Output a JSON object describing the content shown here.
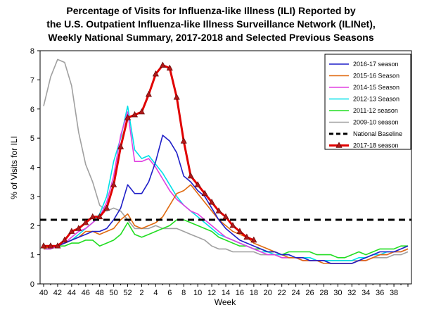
{
  "chart_data": {
    "type": "line",
    "title_lines": [
      "Percentage of Visits for Influenza-like Illness (ILI) Reported by",
      "the U.S. Outpatient Influenza-like Illness Surveillance Network (ILINet),",
      "Weekly National Summary, 2017-2018 and Selected Previous Seasons"
    ],
    "xlabel": "Week",
    "ylabel": "% of Visits for ILI",
    "ylim": [
      0,
      8
    ],
    "yticks": [
      0,
      1,
      2,
      3,
      4,
      5,
      6,
      7,
      8
    ],
    "xtick_labels": [
      "40",
      "42",
      "44",
      "46",
      "48",
      "50",
      "52",
      "2",
      "4",
      "6",
      "8",
      "10",
      "12",
      "14",
      "16",
      "18",
      "20",
      "22",
      "24",
      "26",
      "28",
      "30",
      "32",
      "34",
      "36",
      "38"
    ],
    "x_index_range": [
      0,
      52
    ],
    "grid": false,
    "legend_position": "top-right",
    "series": [
      {
        "name": "2016-17 season",
        "color": "#1f1fc8",
        "style": "solid",
        "values": [
          1.3,
          1.3,
          1.3,
          1.4,
          1.5,
          1.6,
          1.7,
          1.8,
          1.8,
          1.9,
          2.2,
          2.6,
          3.4,
          3.1,
          3.1,
          3.5,
          4.2,
          5.1,
          4.9,
          4.5,
          3.7,
          3.5,
          3.2,
          3.0,
          2.6,
          2.2,
          1.9,
          1.7,
          1.5,
          1.4,
          1.3,
          1.2,
          1.1,
          1.1,
          1.0,
          1.0,
          0.9,
          0.9,
          0.8,
          0.8,
          0.8,
          0.7,
          0.7,
          0.7,
          0.7,
          0.8,
          0.9,
          1.0,
          1.1,
          1.1,
          1.1,
          1.2,
          1.3
        ]
      },
      {
        "name": "2015-16 Season",
        "color": "#e06a10",
        "style": "solid",
        "values": [
          1.2,
          1.3,
          1.3,
          1.4,
          1.5,
          1.6,
          1.8,
          1.8,
          1.7,
          1.8,
          1.9,
          2.2,
          2.4,
          2.0,
          1.9,
          2.0,
          2.1,
          2.3,
          2.7,
          3.1,
          3.2,
          3.4,
          3.1,
          2.8,
          2.5,
          2.2,
          2.0,
          1.8,
          1.7,
          1.6,
          1.4,
          1.3,
          1.2,
          1.1,
          1.0,
          0.9,
          0.9,
          0.8,
          0.8,
          0.8,
          0.7,
          0.7,
          0.7,
          0.7,
          0.7,
          0.8,
          0.8,
          0.9,
          1.0,
          1.0,
          1.1,
          1.1,
          1.2
        ]
      },
      {
        "name": "2014-15 Season",
        "color": "#e040e0",
        "style": "solid",
        "values": [
          1.2,
          1.2,
          1.3,
          1.4,
          1.6,
          1.8,
          1.9,
          2.1,
          2.3,
          2.8,
          3.7,
          5.1,
          5.9,
          4.2,
          4.2,
          4.3,
          4.0,
          3.6,
          3.2,
          2.9,
          2.7,
          2.5,
          2.4,
          2.2,
          2.0,
          1.8,
          1.6,
          1.5,
          1.4,
          1.3,
          1.2,
          1.1,
          1.0,
          1.0,
          0.9,
          0.9,
          0.9,
          0.8,
          0.8,
          0.8,
          0.8,
          0.7,
          0.7,
          0.7,
          0.7,
          0.8,
          0.8,
          0.9,
          1.0,
          1.0,
          1.1,
          1.1,
          1.2
        ]
      },
      {
        "name": "2012-13 Season",
        "color": "#00e0e8",
        "style": "solid",
        "values": [
          1.2,
          1.3,
          1.3,
          1.4,
          1.5,
          1.7,
          1.9,
          2.1,
          2.4,
          3.0,
          4.2,
          5.0,
          6.1,
          4.6,
          4.3,
          4.4,
          4.1,
          3.8,
          3.4,
          3.0,
          2.7,
          2.5,
          2.3,
          2.1,
          1.9,
          1.7,
          1.6,
          1.5,
          1.4,
          1.3,
          1.2,
          1.1,
          1.1,
          1.0,
          1.0,
          1.0,
          0.9,
          0.9,
          0.9,
          0.8,
          0.8,
          0.8,
          0.8,
          0.8,
          0.8,
          0.9,
          0.9,
          1.0,
          1.0,
          1.1,
          1.1,
          1.1,
          1.2
        ]
      },
      {
        "name": "2011-12 season",
        "color": "#22dd22",
        "style": "solid",
        "values": [
          1.2,
          1.2,
          1.3,
          1.3,
          1.4,
          1.4,
          1.5,
          1.5,
          1.3,
          1.4,
          1.5,
          1.7,
          2.1,
          1.7,
          1.6,
          1.7,
          1.8,
          1.9,
          2.0,
          2.2,
          2.2,
          2.1,
          2.0,
          1.9,
          1.8,
          1.6,
          1.5,
          1.4,
          1.3,
          1.3,
          1.2,
          1.2,
          1.1,
          1.1,
          1.0,
          1.1,
          1.1,
          1.1,
          1.1,
          1.0,
          1.0,
          1.0,
          0.9,
          0.9,
          1.0,
          1.1,
          1.0,
          1.1,
          1.2,
          1.2,
          1.2,
          1.3,
          1.3
        ]
      },
      {
        "name": "2009-10 season",
        "color": "#a0a0a0",
        "style": "solid",
        "values": [
          6.1,
          7.1,
          7.7,
          7.6,
          6.8,
          5.2,
          4.1,
          3.5,
          2.7,
          2.5,
          2.6,
          2.5,
          2.2,
          1.9,
          1.9,
          1.9,
          2.0,
          1.9,
          1.9,
          1.9,
          1.8,
          1.7,
          1.6,
          1.5,
          1.3,
          1.2,
          1.2,
          1.1,
          1.1,
          1.1,
          1.1,
          1.0,
          1.0,
          1.0,
          0.9,
          0.9,
          0.9,
          0.9,
          0.9,
          0.8,
          0.8,
          0.8,
          0.8,
          0.8,
          0.8,
          0.8,
          0.8,
          0.9,
          0.9,
          0.9,
          1.0,
          1.0,
          1.1
        ]
      },
      {
        "name": "National Baseline",
        "color": "#000000",
        "style": "dashed",
        "values": [
          2.2
        ]
      },
      {
        "name": "2017-18 season",
        "color": "#e00000",
        "style": "marker-triangle",
        "values": [
          1.3,
          1.3,
          1.3,
          1.5,
          1.8,
          1.9,
          2.1,
          2.3,
          2.3,
          2.6,
          3.4,
          4.7,
          5.7,
          5.8,
          5.9,
          6.5,
          7.2,
          7.5,
          7.4,
          6.4,
          4.9,
          3.7,
          3.4,
          3.1,
          2.8,
          2.5,
          2.3,
          2.0,
          1.8,
          1.6,
          1.5
        ]
      }
    ]
  }
}
